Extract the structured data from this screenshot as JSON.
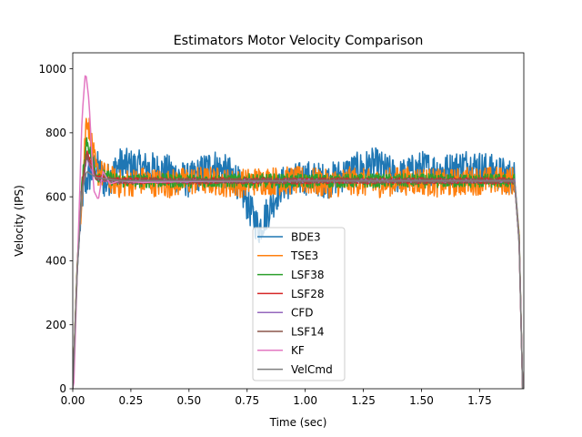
{
  "chart_data": {
    "type": "line",
    "title": "Estimators Motor Velocity Comparison",
    "xlabel": "Time (sec)",
    "ylabel": "Velocity (IPS)",
    "xlim": [
      0,
      1.94
    ],
    "ylim": [
      0,
      1050
    ],
    "xticks": [
      0.0,
      0.25,
      0.5,
      0.75,
      1.0,
      1.25,
      1.5,
      1.75
    ],
    "xtick_labels": [
      "0.00",
      "0.25",
      "0.50",
      "0.75",
      "1.00",
      "1.25",
      "1.50",
      "1.75"
    ],
    "yticks": [
      0,
      200,
      400,
      600,
      800,
      1000
    ],
    "ytick_labels": [
      "0",
      "200",
      "400",
      "600",
      "800",
      "1000"
    ],
    "grid": false,
    "legend_position": "lower center",
    "series": [
      {
        "name": "BDE3",
        "color": "#1f77b4",
        "x": [
          0,
          0.02,
          0.04,
          0.06,
          0.1,
          0.14,
          0.2,
          0.3,
          0.4,
          0.5,
          0.6,
          0.7,
          0.8,
          0.9,
          1.0,
          1.1,
          1.2,
          1.3,
          1.4,
          1.5,
          1.6,
          1.7,
          1.8,
          1.9,
          1.92,
          1.935
        ],
        "y": [
          0,
          380,
          600,
          650,
          700,
          640,
          700,
          690,
          680,
          650,
          700,
          660,
          500,
          640,
          660,
          650,
          680,
          700,
          660,
          690,
          680,
          700,
          680,
          660,
          480,
          0
        ],
        "noise": 55
      },
      {
        "name": "TSE3",
        "color": "#ff7f0e",
        "x": [
          0,
          0.02,
          0.04,
          0.06,
          0.1,
          0.2,
          0.3,
          0.4,
          0.5,
          0.6,
          0.7,
          0.8,
          0.9,
          1.0,
          1.1,
          1.2,
          1.3,
          1.4,
          1.5,
          1.6,
          1.7,
          1.8,
          1.9,
          1.92,
          1.935
        ],
        "y": [
          0,
          400,
          620,
          860,
          680,
          640,
          650,
          640,
          650,
          650,
          640,
          650,
          650,
          650,
          640,
          650,
          640,
          650,
          650,
          640,
          650,
          650,
          650,
          480,
          0
        ],
        "noise": 45
      },
      {
        "name": "LSF38",
        "color": "#2ca02c",
        "x": [
          0,
          0.02,
          0.04,
          0.06,
          0.1,
          0.2,
          0.5,
          1.0,
          1.5,
          1.9,
          1.92,
          1.935
        ],
        "y": [
          0,
          400,
          640,
          780,
          670,
          650,
          650,
          650,
          650,
          650,
          470,
          0
        ],
        "noise": 22
      },
      {
        "name": "LSF28",
        "color": "#d62728",
        "x": [
          0,
          0.02,
          0.04,
          0.06,
          0.1,
          0.2,
          0.5,
          1.0,
          1.5,
          1.9,
          1.92,
          1.935
        ],
        "y": [
          0,
          390,
          630,
          740,
          660,
          650,
          650,
          650,
          650,
          650,
          460,
          0
        ],
        "noise": 10
      },
      {
        "name": "CFD",
        "color": "#9467bd",
        "x": [
          0,
          0.02,
          0.04,
          0.06,
          0.1,
          0.2,
          0.5,
          1.0,
          1.5,
          1.9,
          1.92,
          1.935
        ],
        "y": [
          0,
          380,
          620,
          720,
          655,
          648,
          650,
          650,
          650,
          650,
          460,
          0
        ],
        "noise": 6
      },
      {
        "name": "LSF14",
        "color": "#8c564b",
        "x": [
          0,
          0.02,
          0.04,
          0.06,
          0.1,
          0.2,
          0.5,
          1.0,
          1.5,
          1.9,
          1.92,
          1.935
        ],
        "y": [
          0,
          385,
          625,
          730,
          660,
          650,
          650,
          650,
          650,
          650,
          460,
          0
        ],
        "noise": 8
      },
      {
        "name": "KF",
        "color": "#e377c2",
        "x": [
          0,
          0.005,
          0.02,
          0.04,
          0.055,
          0.07,
          0.09,
          0.11,
          0.13,
          0.16,
          0.2,
          0.3,
          0.5,
          1.0,
          1.5,
          1.9,
          1.92,
          1.935
        ],
        "y": [
          0,
          20,
          380,
          850,
          995,
          900,
          620,
          590,
          680,
          640,
          650,
          645,
          648,
          650,
          650,
          650,
          460,
          0
        ],
        "noise": 0
      },
      {
        "name": "VelCmd",
        "color": "#7f7f7f",
        "x": [
          0,
          0.02,
          0.04,
          0.06,
          0.1,
          0.2,
          0.5,
          1.0,
          1.5,
          1.9,
          1.92,
          1.935
        ],
        "y": [
          0,
          380,
          620,
          680,
          660,
          650,
          650,
          650,
          650,
          650,
          460,
          0
        ],
        "noise": 0
      }
    ]
  }
}
